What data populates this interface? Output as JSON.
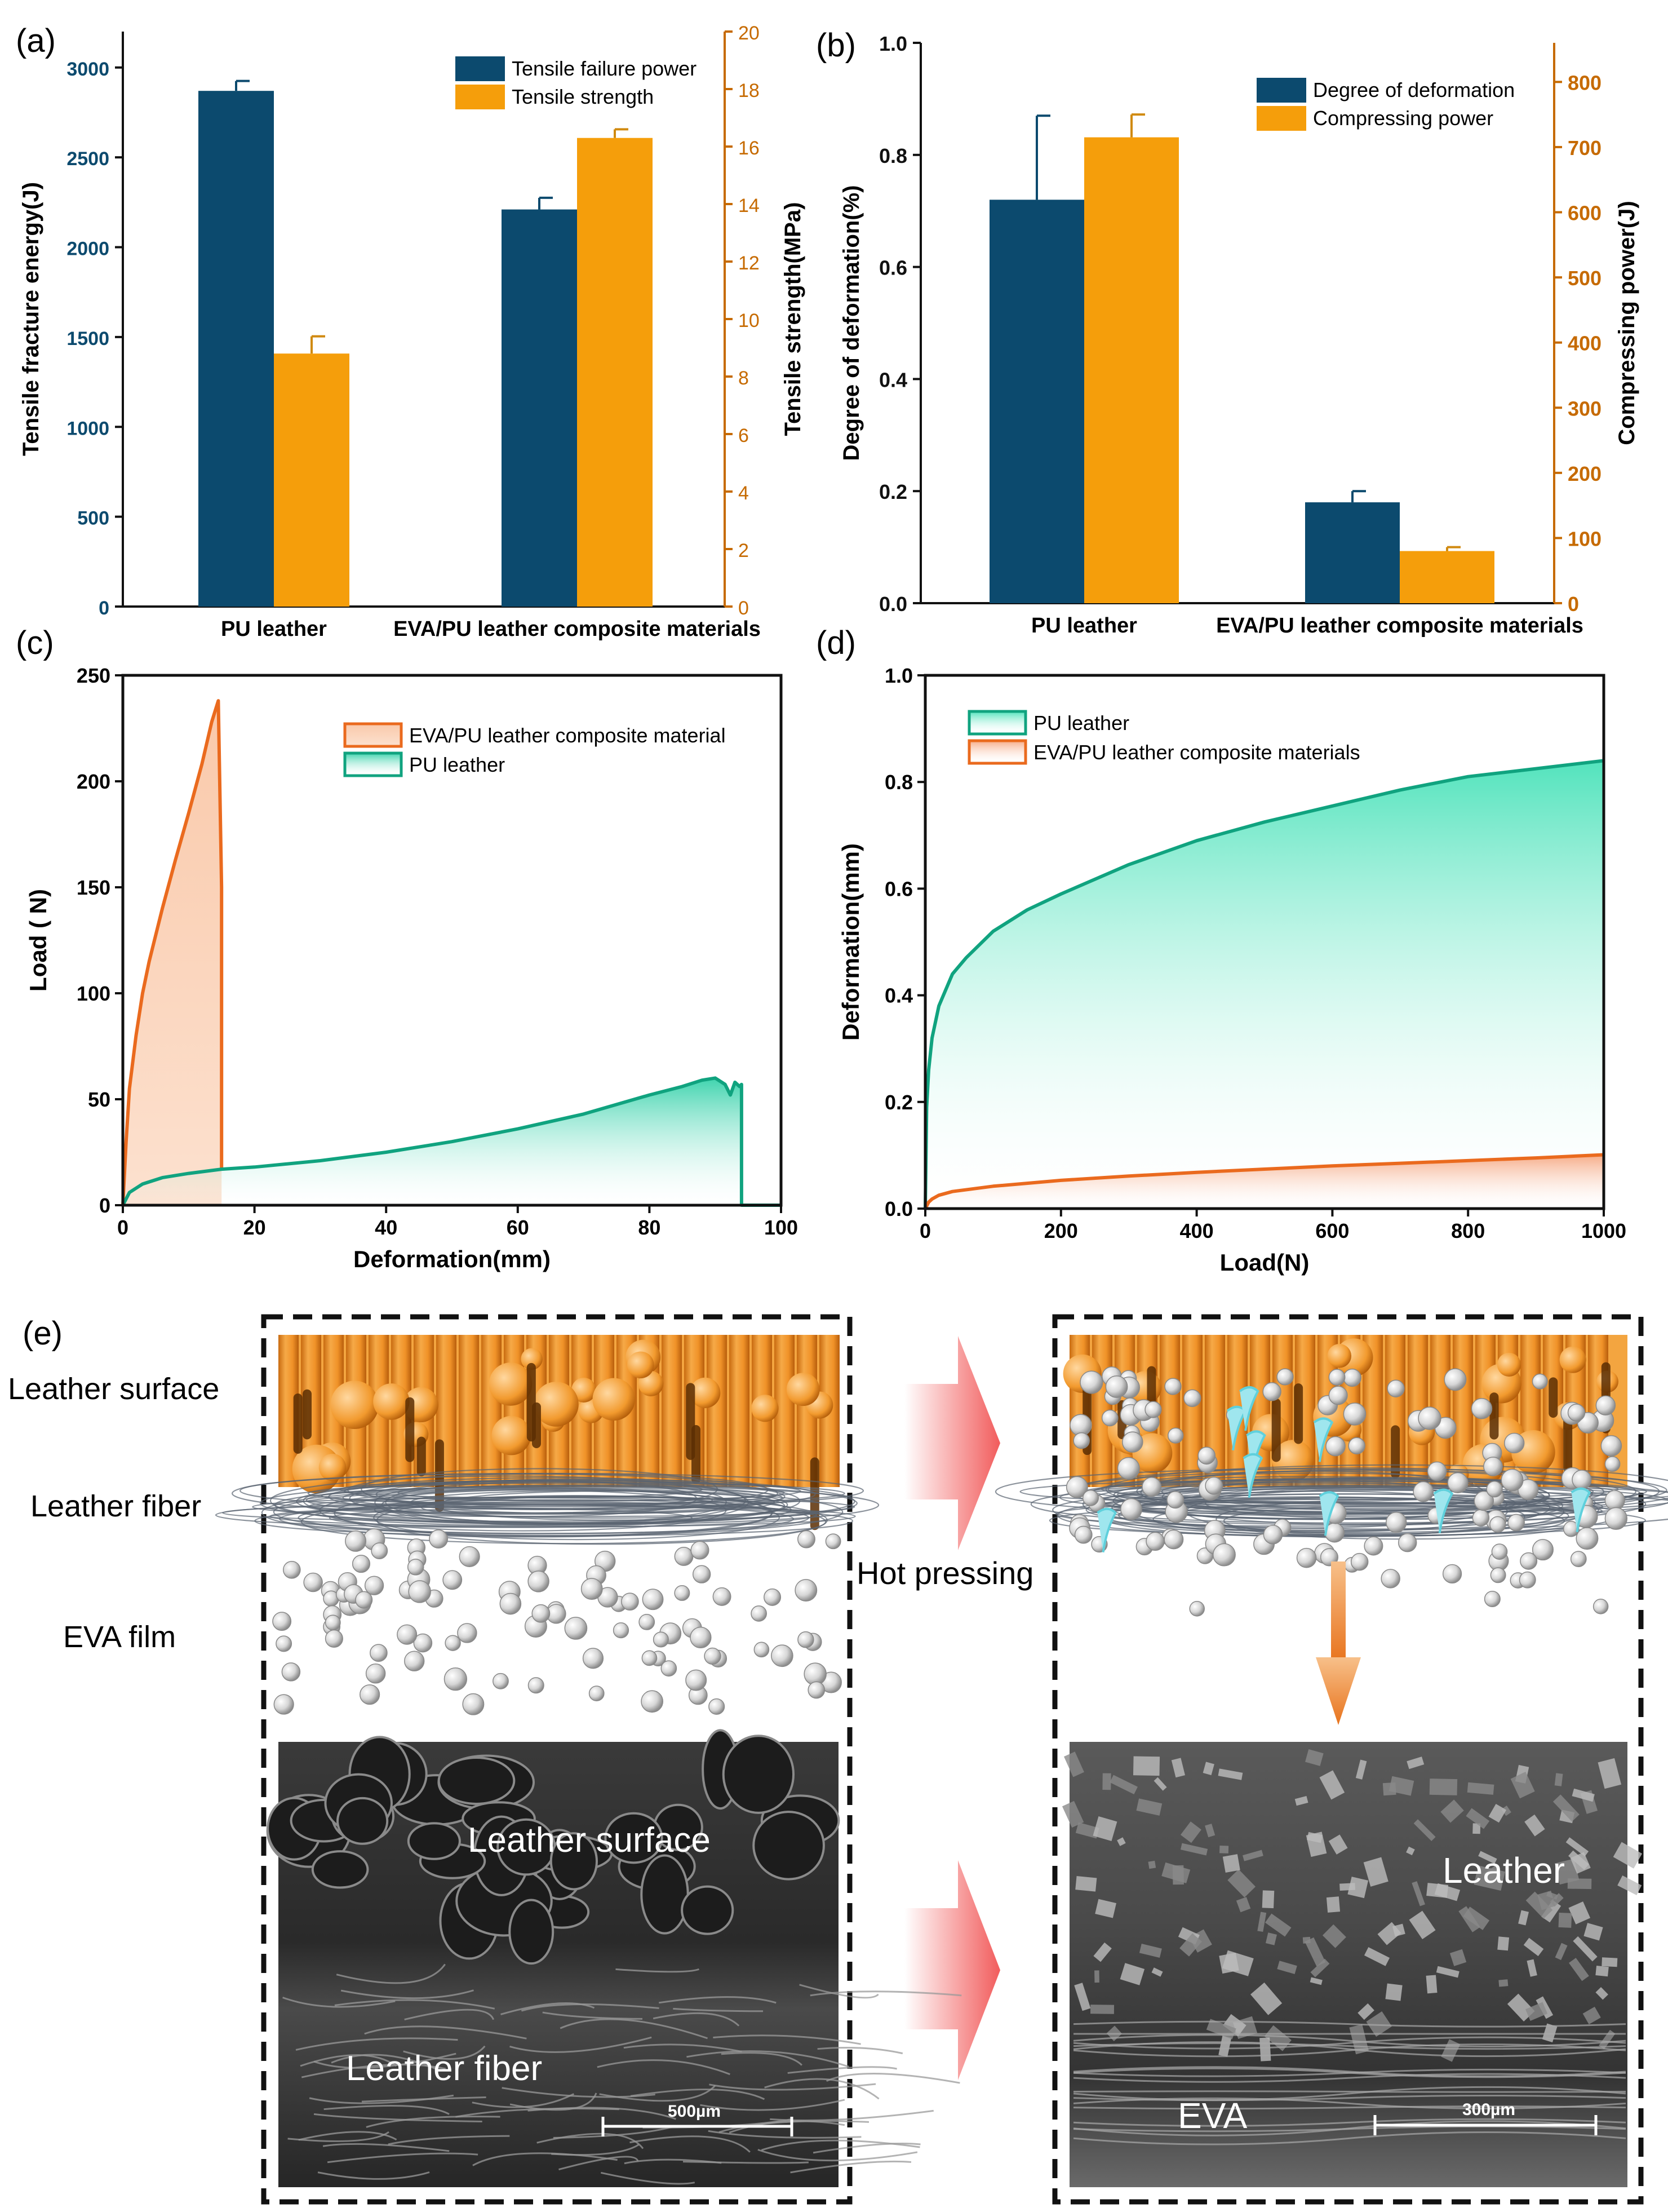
{
  "figure_labels": {
    "a": "(a)",
    "b": "(b)",
    "c": "(c)",
    "d": "(d)",
    "e": "(e)"
  },
  "chart_data": [
    {
      "id": "a",
      "type": "bar",
      "categories": [
        "PU leather",
        "EVA/PU leather composite materials"
      ],
      "series": [
        {
          "name": "Tensile failure power",
          "axis": "left",
          "color": "#0c4a6e",
          "values": [
            2870,
            2210
          ],
          "errors": [
            55,
            65
          ]
        },
        {
          "name": "Tensile strength",
          "axis": "right",
          "color": "#f59e0b",
          "values": [
            8.8,
            16.3
          ],
          "errors": [
            0.6,
            0.3
          ]
        }
      ],
      "ylabel": "Tensile fracture energy(J)",
      "y2label": "Tensile strength(MPa)",
      "ylim": [
        0,
        3200
      ],
      "y2lim": [
        0,
        20
      ],
      "yticks": [
        "0",
        "500",
        "1000",
        "1500",
        "2000",
        "2500",
        "3000"
      ],
      "y2ticks": [
        "0",
        "2",
        "4",
        "6",
        "8",
        "10",
        "12",
        "14",
        "16",
        "18",
        "20"
      ],
      "legend": "top-right"
    },
    {
      "id": "b",
      "type": "bar",
      "categories": [
        "PU leather",
        "EVA/PU leather composite materials"
      ],
      "series": [
        {
          "name": "Degree of deformation",
          "axis": "left",
          "color": "#0c4a6e",
          "values": [
            0.72,
            0.18
          ],
          "errors": [
            0.15,
            0.02
          ]
        },
        {
          "name": "Compressing power",
          "axis": "right",
          "color": "#f59e0b",
          "values": [
            715,
            80
          ],
          "errors": [
            35,
            6
          ]
        }
      ],
      "ylabel": "Degree of deformation(%)",
      "y2label": "Compressing power(J)",
      "ylim": [
        0,
        1.0
      ],
      "y2lim": [
        0,
        860
      ],
      "yticks": [
        "0.0",
        "0.2",
        "0.4",
        "0.6",
        "0.8",
        "1.0"
      ],
      "y2ticks": [
        "0",
        "100",
        "200",
        "300",
        "400",
        "500",
        "600",
        "700",
        "800"
      ],
      "legend": "top-right"
    },
    {
      "id": "c",
      "type": "area",
      "xlabel": "Deformation(mm)",
      "ylabel": "Load ( N)",
      "xlim": [
        0,
        100
      ],
      "ylim": [
        0,
        250
      ],
      "xticks": [
        "0",
        "20",
        "40",
        "60",
        "80",
        "100"
      ],
      "yticks": [
        "0",
        "50",
        "100",
        "150",
        "200",
        "250"
      ],
      "series": [
        {
          "name": "EVA/PU leather composite material",
          "color": "#ea6a1e",
          "x": [
            0,
            0.5,
            1,
            2,
            3,
            4,
            6,
            8,
            10,
            12,
            13.5,
            14.5,
            15,
            15
          ],
          "y": [
            0,
            30,
            55,
            80,
            100,
            115,
            140,
            163,
            185,
            208,
            228,
            238,
            150,
            17
          ]
        },
        {
          "name": "PU leather",
          "color": "#10a37f",
          "x": [
            0,
            1,
            3,
            6,
            10,
            15,
            20,
            30,
            40,
            50,
            60,
            70,
            80,
            85,
            88,
            90,
            91.5,
            92.3,
            93,
            93.7,
            94,
            94,
            100
          ],
          "y": [
            0,
            6,
            10,
            13,
            15,
            17,
            18,
            21,
            25,
            30,
            36,
            43,
            52,
            56,
            59,
            60,
            57,
            52,
            58,
            56,
            57,
            0,
            0
          ]
        }
      ],
      "legend": "top-right"
    },
    {
      "id": "d",
      "type": "area",
      "xlabel": "Load(N)",
      "ylabel": "Deformation(mm)",
      "xlim": [
        0,
        1000
      ],
      "ylim": [
        0,
        1.0
      ],
      "xticks": [
        "0",
        "200",
        "400",
        "600",
        "800",
        "1000"
      ],
      "yticks": [
        "0.0",
        "0.2",
        "0.4",
        "0.6",
        "0.8",
        "1.0"
      ],
      "series": [
        {
          "name": "PU leather",
          "color": "#10a37f",
          "x": [
            0,
            2,
            5,
            10,
            20,
            40,
            60,
            100,
            150,
            200,
            300,
            400,
            500,
            600,
            700,
            800,
            900,
            1000
          ],
          "y": [
            0,
            0.19,
            0.26,
            0.32,
            0.38,
            0.44,
            0.47,
            0.52,
            0.56,
            0.59,
            0.645,
            0.69,
            0.725,
            0.755,
            0.785,
            0.81,
            0.825,
            0.84
          ]
        },
        {
          "name": "EVA/PU leather composite materials",
          "color": "#ea6a1e",
          "x": [
            0,
            5,
            10,
            20,
            40,
            100,
            200,
            300,
            400,
            500,
            600,
            700,
            800,
            900,
            1000
          ],
          "y": [
            0,
            0.012,
            0.018,
            0.025,
            0.032,
            0.042,
            0.053,
            0.061,
            0.068,
            0.074,
            0.08,
            0.085,
            0.09,
            0.095,
            0.101
          ]
        }
      ],
      "legend": "top-left"
    }
  ],
  "schematic": {
    "left_labels": [
      "Leather surface",
      "Leather fiber",
      "EVA film"
    ],
    "arrow_label": "Hot pressing",
    "sem_left": {
      "label1": "Leather surface",
      "label2": "Leather fiber",
      "scale": "500µm"
    },
    "sem_right": {
      "label1": "Leather",
      "label2": "EVA",
      "scale": "300µm"
    }
  },
  "colors": {
    "navy": "#0c4a6e",
    "orange": "#f59e0b",
    "curve_orange": "#ea6a1e",
    "curve_green": "#10a37f",
    "leather_orange": "#f2a033",
    "arrow_red": "#f26d6d",
    "arrow_orange": "#e8832a"
  }
}
